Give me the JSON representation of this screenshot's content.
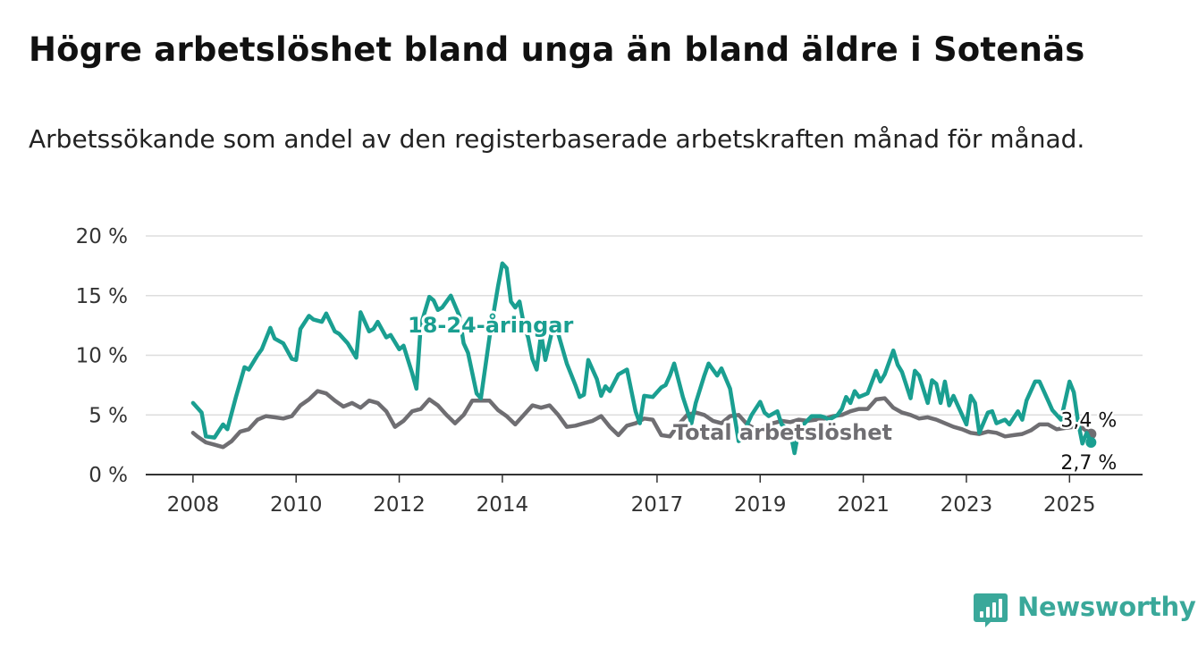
{
  "header": {
    "title": "Högre arbetslöshet bland unga än bland äldre i Sotenäs",
    "subtitle": "Arbetssökande som andel av den registerbaserade arbetskraften månad för månad."
  },
  "brand": {
    "name": "Newsworthy",
    "icon": "newsworthy-logo-icon",
    "color": "#3aa89a"
  },
  "colors": {
    "youth": "#1a9f91",
    "total": "#6f6e72",
    "grid": "#dddddd",
    "axis": "#333333"
  },
  "chart_data": {
    "type": "line",
    "title": "",
    "xlabel": "",
    "ylabel": "",
    "x_tick_labels": [
      "2008",
      "2010",
      "2012",
      "2014",
      "2017",
      "2019",
      "2021",
      "2023",
      "2025"
    ],
    "y_tick_labels": [
      "0 %",
      "5 %",
      "10 %",
      "15 %",
      "20 %"
    ],
    "y_ticks": [
      0,
      5,
      10,
      15,
      20
    ],
    "ylim": [
      0,
      20
    ],
    "xlim": [
      "2007-02",
      "2026-06"
    ],
    "grid": true,
    "legend": "inline labels",
    "series": [
      {
        "name": "18-24-åringar",
        "end_label": "2,7 %",
        "points": [
          [
            "2008-01",
            6.0
          ],
          [
            "2008-03",
            5.2
          ],
          [
            "2008-04",
            3.2
          ],
          [
            "2008-06",
            3.1
          ],
          [
            "2008-08",
            4.2
          ],
          [
            "2008-09",
            3.8
          ],
          [
            "2008-11",
            6.5
          ],
          [
            "2009-01",
            9.0
          ],
          [
            "2009-02",
            8.8
          ],
          [
            "2009-04",
            10.0
          ],
          [
            "2009-05",
            10.5
          ],
          [
            "2009-07",
            12.3
          ],
          [
            "2009-08",
            11.4
          ],
          [
            "2009-10",
            11.0
          ],
          [
            "2009-12",
            9.7
          ],
          [
            "2010-01",
            9.6
          ],
          [
            "2010-02",
            12.2
          ],
          [
            "2010-04",
            13.3
          ],
          [
            "2010-05",
            13.0
          ],
          [
            "2010-07",
            12.8
          ],
          [
            "2010-08",
            13.5
          ],
          [
            "2010-10",
            12.0
          ],
          [
            "2010-11",
            11.8
          ],
          [
            "2011-01",
            11.0
          ],
          [
            "2011-03",
            9.8
          ],
          [
            "2011-04",
            13.6
          ],
          [
            "2011-06",
            12.0
          ],
          [
            "2011-07",
            12.2
          ],
          [
            "2011-08",
            12.8
          ],
          [
            "2011-10",
            11.5
          ],
          [
            "2011-11",
            11.7
          ],
          [
            "2012-01",
            10.5
          ],
          [
            "2012-02",
            10.8
          ],
          [
            "2012-04",
            8.5
          ],
          [
            "2012-05",
            7.2
          ],
          [
            "2012-06",
            12.5
          ],
          [
            "2012-08",
            14.9
          ],
          [
            "2012-09",
            14.6
          ],
          [
            "2012-10",
            13.8
          ],
          [
            "2012-11",
            14.0
          ],
          [
            "2013-01",
            15.0
          ],
          [
            "2013-03",
            13.3
          ],
          [
            "2013-04",
            11.0
          ],
          [
            "2013-05",
            10.2
          ],
          [
            "2013-06",
            8.5
          ],
          [
            "2013-07",
            6.8
          ],
          [
            "2013-08",
            6.4
          ],
          [
            "2013-10",
            11.5
          ],
          [
            "2013-12",
            15.8
          ],
          [
            "2014-01",
            17.7
          ],
          [
            "2014-02",
            17.3
          ],
          [
            "2014-03",
            14.5
          ],
          [
            "2014-04",
            14.0
          ],
          [
            "2014-05",
            14.5
          ],
          [
            "2014-06",
            12.6
          ],
          [
            "2014-07",
            11.5
          ],
          [
            "2014-08",
            9.7
          ],
          [
            "2014-09",
            8.8
          ],
          [
            "2014-10",
            11.8
          ],
          [
            "2014-11",
            9.6
          ],
          [
            "2015-01",
            12.7
          ],
          [
            "2015-02",
            11.8
          ],
          [
            "2015-04",
            9.3
          ],
          [
            "2015-06",
            7.5
          ],
          [
            "2015-07",
            6.5
          ],
          [
            "2015-08",
            6.7
          ],
          [
            "2015-09",
            9.6
          ],
          [
            "2015-11",
            8.0
          ],
          [
            "2015-12",
            6.6
          ],
          [
            "2016-01",
            7.4
          ],
          [
            "2016-02",
            7.0
          ],
          [
            "2016-04",
            8.4
          ],
          [
            "2016-06",
            8.8
          ],
          [
            "2016-08",
            5.3
          ],
          [
            "2016-09",
            4.3
          ],
          [
            "2016-10",
            6.6
          ],
          [
            "2016-12",
            6.5
          ],
          [
            "2017-02",
            7.3
          ],
          [
            "2017-03",
            7.5
          ],
          [
            "2017-04",
            8.3
          ],
          [
            "2017-05",
            9.3
          ],
          [
            "2017-07",
            6.5
          ],
          [
            "2017-09",
            4.3
          ],
          [
            "2017-10",
            6.0
          ],
          [
            "2017-12",
            8.3
          ],
          [
            "2018-01",
            9.3
          ],
          [
            "2018-03",
            8.3
          ],
          [
            "2018-04",
            8.9
          ],
          [
            "2018-06",
            7.2
          ],
          [
            "2018-07",
            5.0
          ],
          [
            "2018-08",
            2.8
          ],
          [
            "2018-09",
            3.0
          ],
          [
            "2018-10",
            4.2
          ],
          [
            "2018-11",
            5.0
          ],
          [
            "2019-01",
            6.1
          ],
          [
            "2019-02",
            5.2
          ],
          [
            "2019-03",
            4.9
          ],
          [
            "2019-05",
            5.3
          ],
          [
            "2019-06",
            4.2
          ],
          [
            "2019-08",
            3.6
          ],
          [
            "2019-09",
            1.8
          ],
          [
            "2019-10",
            3.8
          ],
          [
            "2020-01",
            4.9
          ],
          [
            "2020-03",
            4.9
          ],
          [
            "2020-04",
            4.8
          ],
          [
            "2020-05",
            4.6
          ],
          [
            "2020-07",
            5.0
          ],
          [
            "2020-08",
            5.5
          ],
          [
            "2020-09",
            6.5
          ],
          [
            "2020-10",
            6.0
          ],
          [
            "2020-11",
            7.0
          ],
          [
            "2020-12",
            6.5
          ],
          [
            "2021-02",
            6.8
          ],
          [
            "2021-04",
            8.7
          ],
          [
            "2021-05",
            7.8
          ],
          [
            "2021-06",
            8.4
          ],
          [
            "2021-08",
            10.4
          ],
          [
            "2021-09",
            9.2
          ],
          [
            "2021-10",
            8.6
          ],
          [
            "2021-12",
            6.4
          ],
          [
            "2022-01",
            8.7
          ],
          [
            "2022-02",
            8.3
          ],
          [
            "2022-04",
            6.0
          ],
          [
            "2022-05",
            7.9
          ],
          [
            "2022-06",
            7.6
          ],
          [
            "2022-07",
            6.0
          ],
          [
            "2022-08",
            7.8
          ],
          [
            "2022-09",
            5.8
          ],
          [
            "2022-10",
            6.6
          ],
          [
            "2022-11",
            5.8
          ],
          [
            "2023-01",
            4.2
          ],
          [
            "2023-02",
            6.6
          ],
          [
            "2023-03",
            6.0
          ],
          [
            "2023-04",
            3.5
          ],
          [
            "2023-06",
            5.2
          ],
          [
            "2023-07",
            5.3
          ],
          [
            "2023-08",
            4.3
          ],
          [
            "2023-10",
            4.6
          ],
          [
            "2023-11",
            4.2
          ],
          [
            "2024-01",
            5.3
          ],
          [
            "2024-02",
            4.6
          ],
          [
            "2024-03",
            6.2
          ],
          [
            "2024-04",
            7.0
          ],
          [
            "2024-05",
            7.8
          ],
          [
            "2024-06",
            7.8
          ],
          [
            "2024-07",
            7.0
          ],
          [
            "2024-08",
            6.2
          ],
          [
            "2024-09",
            5.4
          ],
          [
            "2024-10",
            5.0
          ],
          [
            "2024-11",
            4.6
          ],
          [
            "2025-01",
            7.8
          ],
          [
            "2025-02",
            6.9
          ],
          [
            "2025-03",
            4.4
          ],
          [
            "2025-04",
            2.6
          ],
          [
            "2025-05",
            3.5
          ],
          [
            "2025-06",
            2.7
          ]
        ]
      },
      {
        "name": "Total arbetslöshet",
        "end_label": "3,4 %",
        "points": [
          [
            "2008-01",
            3.5
          ],
          [
            "2008-02",
            3.2
          ],
          [
            "2008-04",
            2.7
          ],
          [
            "2008-06",
            2.5
          ],
          [
            "2008-08",
            2.3
          ],
          [
            "2008-10",
            2.8
          ],
          [
            "2008-12",
            3.6
          ],
          [
            "2009-02",
            3.8
          ],
          [
            "2009-04",
            4.6
          ],
          [
            "2009-06",
            4.9
          ],
          [
            "2009-08",
            4.8
          ],
          [
            "2009-10",
            4.7
          ],
          [
            "2009-12",
            4.9
          ],
          [
            "2010-02",
            5.8
          ],
          [
            "2010-04",
            6.3
          ],
          [
            "2010-06",
            7.0
          ],
          [
            "2010-08",
            6.8
          ],
          [
            "2010-10",
            6.2
          ],
          [
            "2010-12",
            5.7
          ],
          [
            "2011-02",
            6.0
          ],
          [
            "2011-04",
            5.6
          ],
          [
            "2011-06",
            6.2
          ],
          [
            "2011-08",
            6.0
          ],
          [
            "2011-10",
            5.3
          ],
          [
            "2011-12",
            4.0
          ],
          [
            "2012-02",
            4.5
          ],
          [
            "2012-04",
            5.3
          ],
          [
            "2012-06",
            5.5
          ],
          [
            "2012-08",
            6.3
          ],
          [
            "2012-10",
            5.8
          ],
          [
            "2012-12",
            5.0
          ],
          [
            "2013-02",
            4.3
          ],
          [
            "2013-04",
            5.0
          ],
          [
            "2013-06",
            6.2
          ],
          [
            "2013-08",
            6.2
          ],
          [
            "2013-10",
            6.2
          ],
          [
            "2013-12",
            5.4
          ],
          [
            "2014-02",
            4.9
          ],
          [
            "2014-04",
            4.2
          ],
          [
            "2014-06",
            5.0
          ],
          [
            "2014-08",
            5.8
          ],
          [
            "2014-10",
            5.6
          ],
          [
            "2014-12",
            5.8
          ],
          [
            "2015-02",
            5.0
          ],
          [
            "2015-04",
            4.0
          ],
          [
            "2015-06",
            4.1
          ],
          [
            "2015-08",
            4.3
          ],
          [
            "2015-10",
            4.5
          ],
          [
            "2015-12",
            4.9
          ],
          [
            "2016-02",
            4.0
          ],
          [
            "2016-04",
            3.3
          ],
          [
            "2016-06",
            4.1
          ],
          [
            "2016-08",
            4.3
          ],
          [
            "2016-10",
            4.7
          ],
          [
            "2016-12",
            4.6
          ],
          [
            "2017-02",
            3.3
          ],
          [
            "2017-04",
            3.2
          ],
          [
            "2017-06",
            4.2
          ],
          [
            "2017-08",
            5.0
          ],
          [
            "2017-10",
            5.2
          ],
          [
            "2017-12",
            5.0
          ],
          [
            "2018-02",
            4.5
          ],
          [
            "2018-04",
            4.3
          ],
          [
            "2018-06",
            4.9
          ],
          [
            "2018-08",
            5.0
          ],
          [
            "2018-10",
            4.2
          ],
          [
            "2018-12",
            3.8
          ],
          [
            "2019-02",
            4.0
          ],
          [
            "2019-04",
            4.3
          ],
          [
            "2019-06",
            4.5
          ],
          [
            "2019-08",
            4.4
          ],
          [
            "2019-10",
            4.6
          ],
          [
            "2019-12",
            4.5
          ],
          [
            "2020-02",
            4.6
          ],
          [
            "2020-04",
            4.7
          ],
          [
            "2020-06",
            4.9
          ],
          [
            "2020-08",
            5.0
          ],
          [
            "2020-10",
            5.3
          ],
          [
            "2020-12",
            5.5
          ],
          [
            "2021-02",
            5.5
          ],
          [
            "2021-04",
            6.3
          ],
          [
            "2021-06",
            6.4
          ],
          [
            "2021-08",
            5.6
          ],
          [
            "2021-10",
            5.2
          ],
          [
            "2021-12",
            5.0
          ],
          [
            "2022-02",
            4.7
          ],
          [
            "2022-04",
            4.8
          ],
          [
            "2022-06",
            4.6
          ],
          [
            "2022-08",
            4.3
          ],
          [
            "2022-10",
            4.0
          ],
          [
            "2022-12",
            3.8
          ],
          [
            "2023-02",
            3.5
          ],
          [
            "2023-04",
            3.4
          ],
          [
            "2023-06",
            3.6
          ],
          [
            "2023-08",
            3.5
          ],
          [
            "2023-10",
            3.2
          ],
          [
            "2023-12",
            3.3
          ],
          [
            "2024-02",
            3.4
          ],
          [
            "2024-04",
            3.7
          ],
          [
            "2024-06",
            4.2
          ],
          [
            "2024-08",
            4.2
          ],
          [
            "2024-10",
            3.8
          ],
          [
            "2024-12",
            3.9
          ],
          [
            "2025-02",
            4.0
          ],
          [
            "2025-04",
            3.9
          ],
          [
            "2025-06",
            3.4
          ]
        ]
      }
    ]
  }
}
